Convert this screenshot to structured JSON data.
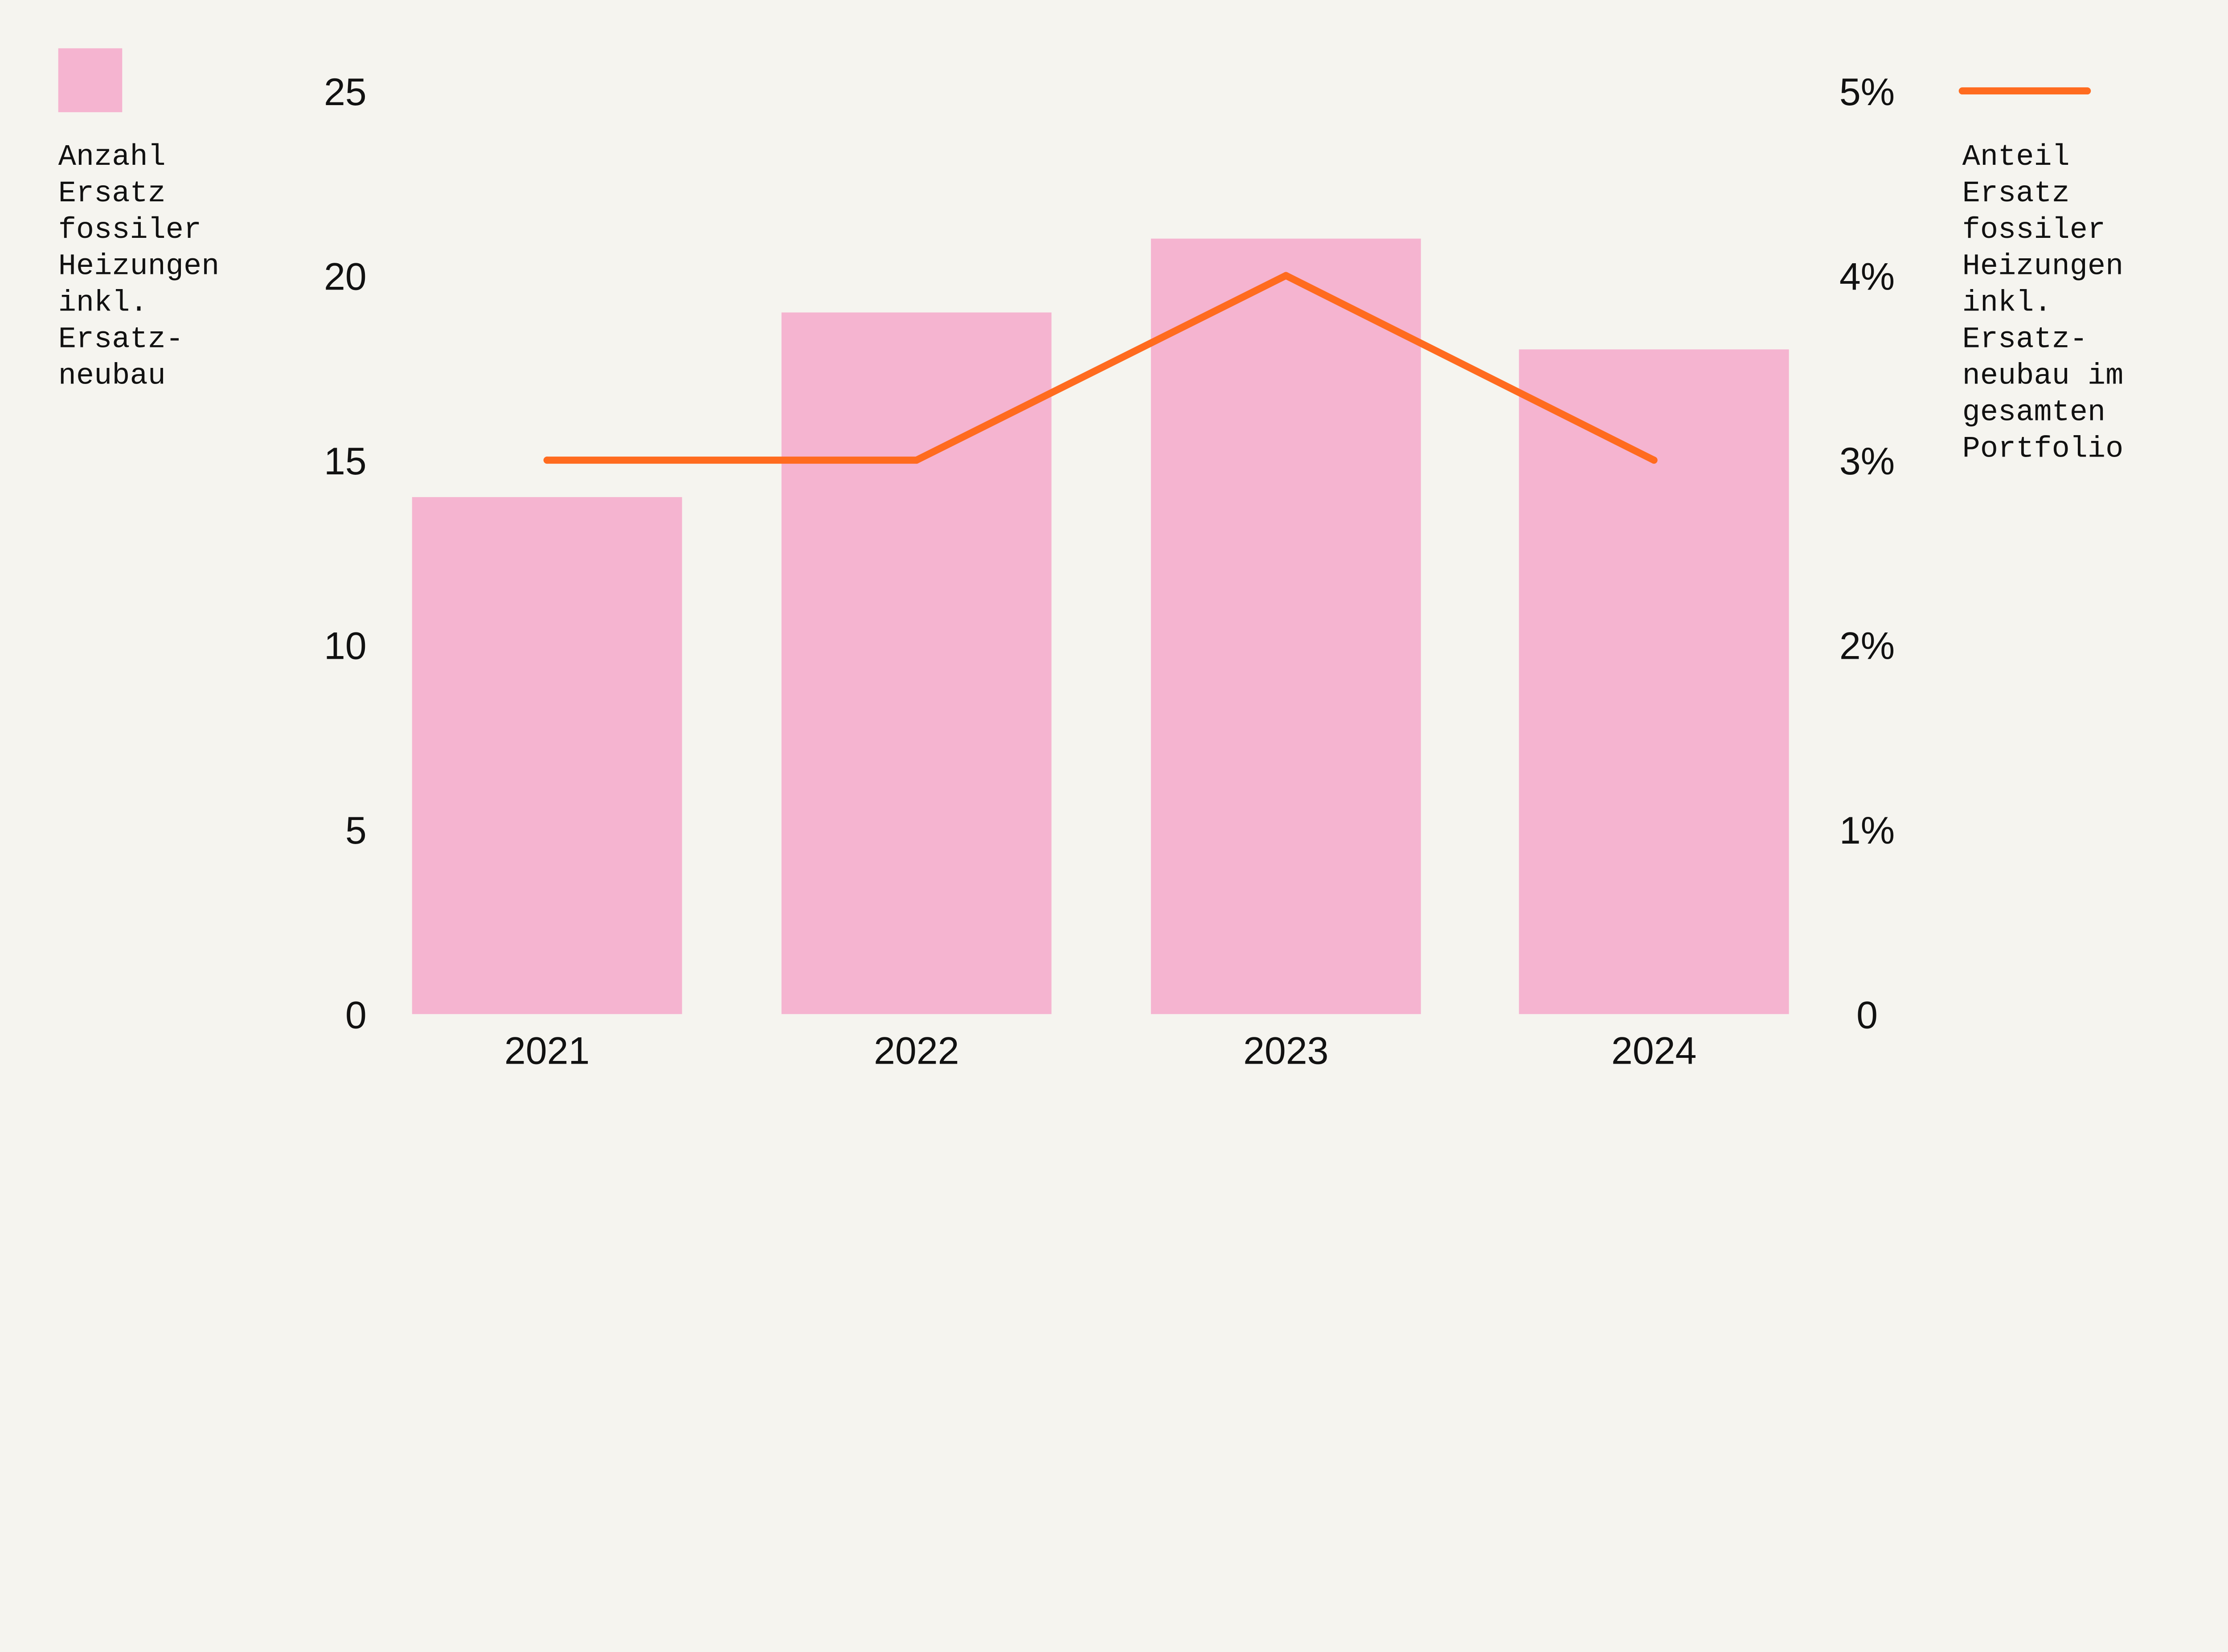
{
  "chart_data": {
    "type": "bar+line",
    "categories": [
      "2021",
      "2022",
      "2023",
      "2024"
    ],
    "series": [
      {
        "name": "Anzahl Ersatz fossiler Heizungen inkl. Ersatz-neubau",
        "type": "bar",
        "axis": "left",
        "values": [
          14,
          19,
          21,
          18
        ],
        "color": "#f5b4d0"
      },
      {
        "name": "Anteil Ersatz fossiler Heizungen inkl. Ersatz-neubau im gesamten Portfolio",
        "type": "line",
        "axis": "right",
        "values": [
          3,
          3,
          4,
          3
        ],
        "unit": "%",
        "color": "#ff6b1f"
      }
    ],
    "left_axis": {
      "ylim": [
        0,
        25
      ],
      "ticks": [
        "0",
        "5",
        "10",
        "15",
        "20",
        "25"
      ]
    },
    "right_axis": {
      "ylim": [
        0,
        5
      ],
      "ticks": [
        "0",
        "1%",
        "2%",
        "3%",
        "4%",
        "5%"
      ]
    },
    "grid": false,
    "legend": {
      "left": {
        "lines": [
          "Anzahl",
          "Ersatz",
          "fossiler",
          "Heizungen",
          "inkl.",
          "Ersatz-",
          "neubau"
        ]
      },
      "right": {
        "lines": [
          "Anteil",
          "Ersatz",
          "fossiler",
          "Heizungen",
          "inkl.",
          "Ersatz-",
          "neubau im",
          "gesamten",
          "Portfolio"
        ]
      }
    },
    "background": "#f5f4ef"
  }
}
